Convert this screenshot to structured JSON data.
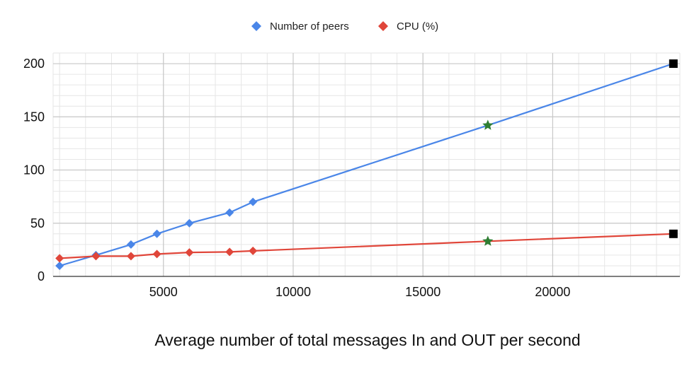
{
  "chart_data": {
    "type": "line",
    "title": "",
    "xlabel": "Average number of total messages In and OUT per second",
    "ylabel": "",
    "xlim": [
      750,
      24900
    ],
    "ylim": [
      0,
      210
    ],
    "x_ticks": [
      5000,
      10000,
      15000,
      20000
    ],
    "x_tick_labels": [
      "5000",
      "10000",
      "15000",
      "20000"
    ],
    "x_minor_step": 1000,
    "y_ticks": [
      0,
      50,
      100,
      150,
      200
    ],
    "y_tick_labels": [
      "0",
      "50",
      "100",
      "150",
      "200"
    ],
    "y_minor_step": 10,
    "grid": true,
    "legend_position": "top",
    "series": [
      {
        "name": "Number of peers",
        "color": "#4a86e8",
        "marker": "diamond",
        "x": [
          1000,
          2400,
          3750,
          4750,
          6000,
          7550,
          8450,
          17500,
          24650
        ],
        "y": [
          10,
          20,
          30,
          40,
          50,
          60,
          70,
          142,
          200
        ],
        "special_markers": [
          {
            "x": 17500,
            "y": 142,
            "shape": "star",
            "color": "#2e7d32"
          },
          {
            "x": 24650,
            "y": 200,
            "shape": "square",
            "color": "#000000"
          }
        ]
      },
      {
        "name": "CPU (%)",
        "color": "#e0463a",
        "marker": "diamond",
        "x": [
          1000,
          2400,
          3750,
          4750,
          6000,
          7550,
          8450,
          17500,
          24650
        ],
        "y": [
          17,
          19,
          19,
          21,
          22.5,
          23,
          24,
          33,
          40
        ],
        "special_markers": [
          {
            "x": 17500,
            "y": 33,
            "shape": "star",
            "color": "#2e7d32"
          },
          {
            "x": 24650,
            "y": 40,
            "shape": "square",
            "color": "#000000"
          }
        ]
      }
    ]
  }
}
